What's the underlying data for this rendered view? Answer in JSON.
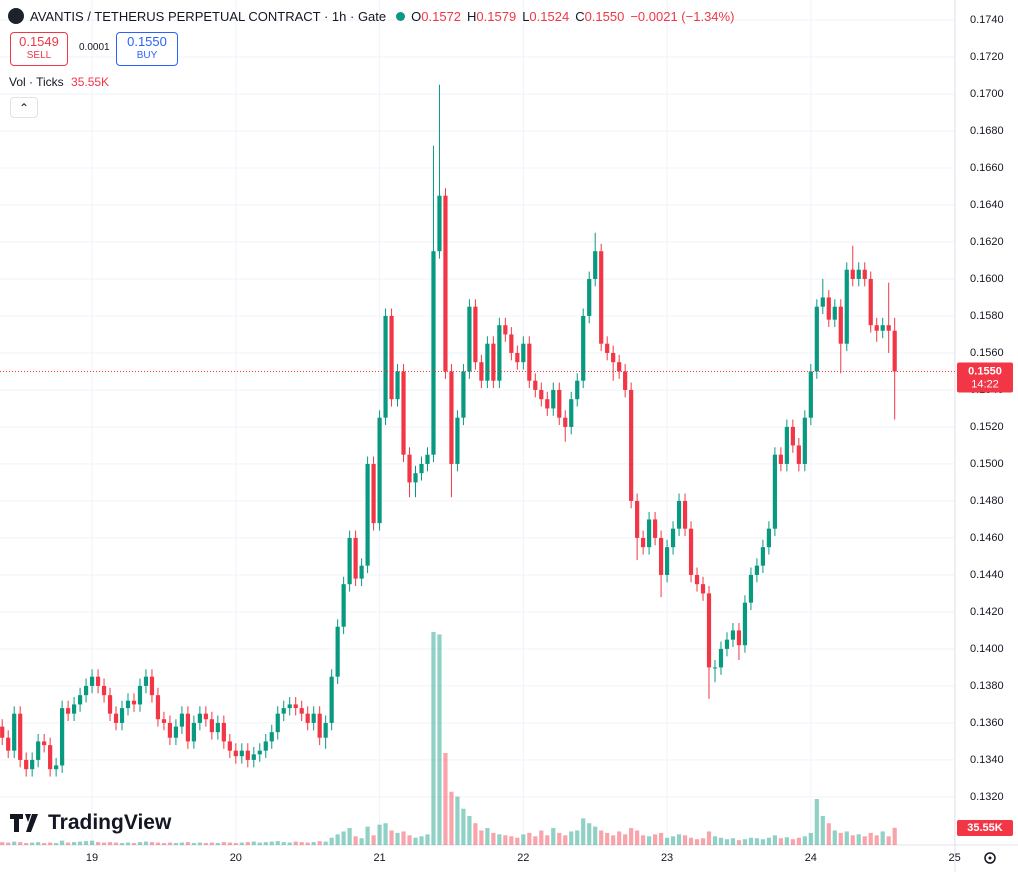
{
  "chart_data": {
    "type": "candlestick",
    "title": "AVANTIS / TETHERUS PERPETUAL CONTRACT · 1h · Gate",
    "legend": {
      "open_label": "O",
      "open": "0.1572",
      "high_label": "H",
      "high": "0.1579",
      "low_label": "L",
      "low": "0.1524",
      "close_label": "C",
      "close": "0.1550",
      "change": "−0.0021 (−1.34%)"
    },
    "trade": {
      "sell_price": "0.1549",
      "sell": "SELL",
      "spread": "0.0001",
      "buy_price": "0.1550",
      "buy": "BUY"
    },
    "volume_indicator": {
      "name": "Vol · Ticks",
      "value": "35.55K"
    },
    "last_price_label": "0.1550",
    "countdown": "14:22",
    "brand": "TradingView",
    "up_color": "#089981",
    "down_color": "#f23645",
    "grid": true,
    "open": [
      0.1358,
      0.1352,
      0.1345,
      0.1365,
      0.134,
      0.1335,
      0.134,
      0.135,
      0.1348,
      0.1335,
      0.1337,
      0.1368,
      0.1365,
      0.137,
      0.1375,
      0.138,
      0.1385,
      0.138,
      0.1375,
      0.1365,
      0.136,
      0.1368,
      0.1372,
      0.137,
      0.138,
      0.1385,
      0.1375,
      0.1362,
      0.136,
      0.1352,
      0.1358,
      0.1365,
      0.135,
      0.136,
      0.1365,
      0.1362,
      0.1355,
      0.136,
      0.135,
      0.1345,
      0.1342,
      0.1345,
      0.134,
      0.1343,
      0.1345,
      0.135,
      0.1355,
      0.1365,
      0.1368,
      0.137,
      0.1368,
      0.1365,
      0.136,
      0.1365,
      0.1352,
      0.136,
      0.1385,
      0.1412,
      0.1435,
      0.146,
      0.1438,
      0.1445,
      0.15,
      0.1468,
      0.1525,
      0.158,
      0.1535,
      0.155,
      0.1505,
      0.149,
      0.1495,
      0.15,
      0.1505,
      0.1615,
      0.1645,
      0.155,
      0.15,
      0.1525,
      0.155,
      0.1585,
      0.1555,
      0.1545,
      0.1565,
      0.1545,
      0.1575,
      0.157,
      0.156,
      0.1555,
      0.1565,
      0.1545,
      0.154,
      0.1535,
      0.153,
      0.154,
      0.1525,
      0.152,
      0.1535,
      0.1545,
      0.158,
      0.16,
      0.1615,
      0.1565,
      0.156,
      0.1555,
      0.155,
      0.154,
      0.148,
      0.146,
      0.1455,
      0.147,
      0.146,
      0.144,
      0.1455,
      0.1465,
      0.148,
      0.1465,
      0.144,
      0.1435,
      0.143,
      0.139,
      0.139,
      0.14,
      0.1405,
      0.141,
      0.1402,
      0.1425,
      0.144,
      0.1445,
      0.1455,
      0.1465,
      0.1505,
      0.15,
      0.152,
      0.151,
      0.15,
      0.1525,
      0.155,
      0.1585,
      0.159,
      0.1578,
      0.1585,
      0.1565,
      0.1605,
      0.16,
      0.1605,
      0.16,
      0.1575,
      0.1572,
      0.1575,
      0.1572
    ],
    "high": [
      0.1362,
      0.1356,
      0.1369,
      0.1369,
      0.1344,
      0.1344,
      0.1354,
      0.1354,
      0.1352,
      0.1341,
      0.1372,
      0.1372,
      0.1374,
      0.1379,
      0.1384,
      0.1389,
      0.1389,
      0.1384,
      0.1379,
      0.1369,
      0.1372,
      0.1376,
      0.1376,
      0.1384,
      0.1389,
      0.1389,
      0.1379,
      0.1366,
      0.1364,
      0.1362,
      0.1369,
      0.1369,
      0.1364,
      0.1369,
      0.1369,
      0.1366,
      0.1364,
      0.1364,
      0.1354,
      0.1349,
      0.1349,
      0.1349,
      0.1347,
      0.1349,
      0.1354,
      0.1359,
      0.1369,
      0.1372,
      0.1374,
      0.1374,
      0.1372,
      0.1369,
      0.1369,
      0.1369,
      0.1364,
      0.1389,
      0.1416,
      0.1439,
      0.1464,
      0.1464,
      0.1449,
      0.1504,
      0.1504,
      0.1529,
      0.1584,
      0.1584,
      0.1554,
      0.1554,
      0.1509,
      0.1499,
      0.1504,
      0.1509,
      0.1672,
      0.1705,
      0.1649,
      0.1554,
      0.1529,
      0.1554,
      0.1589,
      0.1589,
      0.1559,
      0.1569,
      0.1569,
      0.1579,
      0.1579,
      0.1574,
      0.1564,
      0.1569,
      0.1569,
      0.1549,
      0.1544,
      0.1539,
      0.1544,
      0.1544,
      0.1529,
      0.1539,
      0.1549,
      0.1584,
      0.1604,
      0.1625,
      0.1619,
      0.1569,
      0.1564,
      0.1559,
      0.1554,
      0.1544,
      0.1484,
      0.1464,
      0.1474,
      0.1474,
      0.1464,
      0.1459,
      0.1469,
      0.1484,
      0.1484,
      0.1469,
      0.1444,
      0.1439,
      0.1434,
      0.1394,
      0.1404,
      0.1409,
      0.1414,
      0.1414,
      0.1429,
      0.1444,
      0.1449,
      0.1459,
      0.1469,
      0.1509,
      0.1509,
      0.1524,
      0.1524,
      0.1514,
      0.1529,
      0.1554,
      0.1589,
      0.16,
      0.1594,
      0.1589,
      0.1589,
      0.1609,
      0.1618,
      0.1609,
      0.1609,
      0.1604,
      0.1579,
      0.1579,
      0.1598,
      0.1579
    ],
    "low": [
      0.1348,
      0.1341,
      0.1341,
      0.1336,
      0.1331,
      0.1331,
      0.1336,
      0.1344,
      0.1331,
      0.1331,
      0.1333,
      0.1361,
      0.1361,
      0.1366,
      0.1371,
      0.1376,
      0.1376,
      0.1371,
      0.1361,
      0.1356,
      0.1356,
      0.1364,
      0.1366,
      0.1366,
      0.1376,
      0.1371,
      0.1358,
      0.1356,
      0.1348,
      0.1348,
      0.1354,
      0.1346,
      0.1346,
      0.1356,
      0.1358,
      0.1351,
      0.1351,
      0.1346,
      0.1341,
      0.1338,
      0.1338,
      0.1336,
      0.1336,
      0.1339,
      0.1341,
      0.1346,
      0.1351,
      0.1361,
      0.1364,
      0.1364,
      0.1361,
      0.1356,
      0.1356,
      0.1348,
      0.1346,
      0.1356,
      0.1381,
      0.1408,
      0.1431,
      0.1434,
      0.1434,
      0.1441,
      0.1464,
      0.1464,
      0.1521,
      0.1531,
      0.1531,
      0.1501,
      0.1482,
      0.1482,
      0.1491,
      0.1496,
      0.1501,
      0.1611,
      0.1546,
      0.1482,
      0.1496,
      0.1521,
      0.1546,
      0.1551,
      0.1541,
      0.1541,
      0.1541,
      0.1541,
      0.1566,
      0.1556,
      0.1551,
      0.1551,
      0.1541,
      0.1536,
      0.1531,
      0.1526,
      0.1526,
      0.1521,
      0.1512,
      0.1516,
      0.1531,
      0.1541,
      0.1576,
      0.1596,
      0.1561,
      0.1556,
      0.1545,
      0.1546,
      0.1536,
      0.1476,
      0.1448,
      0.1451,
      0.1451,
      0.1456,
      0.1428,
      0.1436,
      0.1451,
      0.1461,
      0.1461,
      0.1436,
      0.1431,
      0.1426,
      0.1373,
      0.1382,
      0.1386,
      0.1396,
      0.1401,
      0.1394,
      0.1398,
      0.1421,
      0.1436,
      0.1441,
      0.1451,
      0.1461,
      0.1496,
      0.1496,
      0.1506,
      0.1496,
      0.1496,
      0.1521,
      0.1546,
      0.1581,
      0.1574,
      0.1574,
      0.1549,
      0.1561,
      0.1596,
      0.1596,
      0.1596,
      0.1571,
      0.1566,
      0.1568,
      0.156,
      0.1524
    ],
    "close": [
      0.1352,
      0.1345,
      0.1365,
      0.134,
      0.1335,
      0.134,
      0.135,
      0.1348,
      0.1335,
      0.1337,
      0.1368,
      0.1365,
      0.137,
      0.1375,
      0.138,
      0.1385,
      0.138,
      0.1375,
      0.1365,
      0.136,
      0.1368,
      0.1372,
      0.137,
      0.138,
      0.1385,
      0.1375,
      0.1362,
      0.136,
      0.1352,
      0.1358,
      0.1365,
      0.135,
      0.136,
      0.1365,
      0.1362,
      0.1355,
      0.136,
      0.135,
      0.1345,
      0.1342,
      0.1345,
      0.134,
      0.1343,
      0.1345,
      0.135,
      0.1355,
      0.1365,
      0.1368,
      0.137,
      0.1368,
      0.1365,
      0.136,
      0.1365,
      0.1352,
      0.136,
      0.1385,
      0.1412,
      0.1435,
      0.146,
      0.1438,
      0.1445,
      0.15,
      0.1468,
      0.1525,
      0.158,
      0.1535,
      0.155,
      0.1505,
      0.149,
      0.1495,
      0.15,
      0.1505,
      0.1615,
      0.1645,
      0.155,
      0.15,
      0.1525,
      0.155,
      0.1585,
      0.1555,
      0.1545,
      0.1565,
      0.1545,
      0.1575,
      0.157,
      0.156,
      0.1555,
      0.1565,
      0.1545,
      0.154,
      0.1535,
      0.153,
      0.154,
      0.1525,
      0.152,
      0.1535,
      0.1545,
      0.158,
      0.16,
      0.1615,
      0.1565,
      0.156,
      0.1555,
      0.155,
      0.154,
      0.148,
      0.146,
      0.1455,
      0.147,
      0.146,
      0.144,
      0.1455,
      0.1465,
      0.148,
      0.1465,
      0.144,
      0.1435,
      0.143,
      0.139,
      0.139,
      0.14,
      0.1405,
      0.141,
      0.1402,
      0.1425,
      0.144,
      0.1445,
      0.1455,
      0.1465,
      0.1505,
      0.15,
      0.152,
      0.151,
      0.15,
      0.1525,
      0.155,
      0.1585,
      0.159,
      0.1578,
      0.1585,
      0.1565,
      0.1605,
      0.16,
      0.1605,
      0.16,
      0.1575,
      0.1572,
      0.1575,
      0.1572,
      0.155
    ],
    "volume": [
      6000,
      5000,
      7000,
      6000,
      4000,
      5000,
      6000,
      4000,
      5000,
      4000,
      9000,
      5000,
      6000,
      7000,
      8000,
      9000,
      6000,
      5000,
      6000,
      5000,
      4000,
      5000,
      4000,
      6000,
      7000,
      6000,
      5000,
      4000,
      5000,
      4000,
      5000,
      6000,
      4000,
      5000,
      4000,
      5000,
      4000,
      6000,
      5000,
      4000,
      5000,
      6000,
      7000,
      5000,
      6000,
      7000,
      8000,
      6000,
      5000,
      7000,
      6000,
      5000,
      6000,
      8000,
      7000,
      15000,
      22000,
      28000,
      35000,
      18000,
      14000,
      38000,
      20000,
      42000,
      45000,
      30000,
      25000,
      28000,
      20000,
      15000,
      18000,
      22000,
      440000,
      435000,
      190000,
      110000,
      100000,
      75000,
      60000,
      45000,
      30000,
      35000,
      25000,
      22000,
      20000,
      18000,
      15000,
      22000,
      25000,
      18000,
      30000,
      20000,
      35000,
      25000,
      20000,
      28000,
      30000,
      55000,
      45000,
      38000,
      30000,
      25000,
      20000,
      28000,
      22000,
      35000,
      30000,
      20000,
      18000,
      22000,
      25000,
      15000,
      18000,
      22000,
      20000,
      15000,
      12000,
      14000,
      28000,
      18000,
      15000,
      12000,
      14000,
      10000,
      12000,
      15000,
      14000,
      12000,
      15000,
      20000,
      14000,
      16000,
      12000,
      15000,
      18000,
      25000,
      95000,
      60000,
      45000,
      30000,
      25000,
      28000,
      20000,
      22000,
      18000,
      25000,
      20000,
      28000,
      18000,
      35550
    ],
    "xlim": [
      -0.37,
      159.07
    ],
    "ylim": [
      0.1294,
      0.17508
    ],
    "xticks": [
      {
        "value": 15,
        "label": "19"
      },
      {
        "value": 39,
        "label": "20"
      },
      {
        "value": 63,
        "label": "21"
      },
      {
        "value": 87,
        "label": "22"
      },
      {
        "value": 111,
        "label": "23"
      },
      {
        "value": 135,
        "label": "24"
      },
      {
        "value": 159,
        "label": "25"
      }
    ],
    "yticks": [
      {
        "value": 0.132,
        "label": "0.1320"
      },
      {
        "value": 0.134,
        "label": "0.1340"
      },
      {
        "value": 0.136,
        "label": "0.1360"
      },
      {
        "value": 0.138,
        "label": "0.1380"
      },
      {
        "value": 0.14,
        "label": "0.1400"
      },
      {
        "value": 0.142,
        "label": "0.1420"
      },
      {
        "value": 0.144,
        "label": "0.1440"
      },
      {
        "value": 0.146,
        "label": "0.1460"
      },
      {
        "value": 0.148,
        "label": "0.1480"
      },
      {
        "value": 0.15,
        "label": "0.1500"
      },
      {
        "value": 0.152,
        "label": "0.1520"
      },
      {
        "value": 0.154,
        "label": "0.1540"
      },
      {
        "value": 0.156,
        "label": "0.1560"
      },
      {
        "value": 0.158,
        "label": "0.1580"
      },
      {
        "value": 0.16,
        "label": "0.1600"
      },
      {
        "value": 0.162,
        "label": "0.1620"
      },
      {
        "value": 0.164,
        "label": "0.1640"
      },
      {
        "value": 0.166,
        "label": "0.1660"
      },
      {
        "value": 0.168,
        "label": "0.1680"
      },
      {
        "value": 0.17,
        "label": "0.1700"
      },
      {
        "value": 0.172,
        "label": "0.1720"
      },
      {
        "value": 0.174,
        "label": "0.1740"
      }
    ]
  }
}
